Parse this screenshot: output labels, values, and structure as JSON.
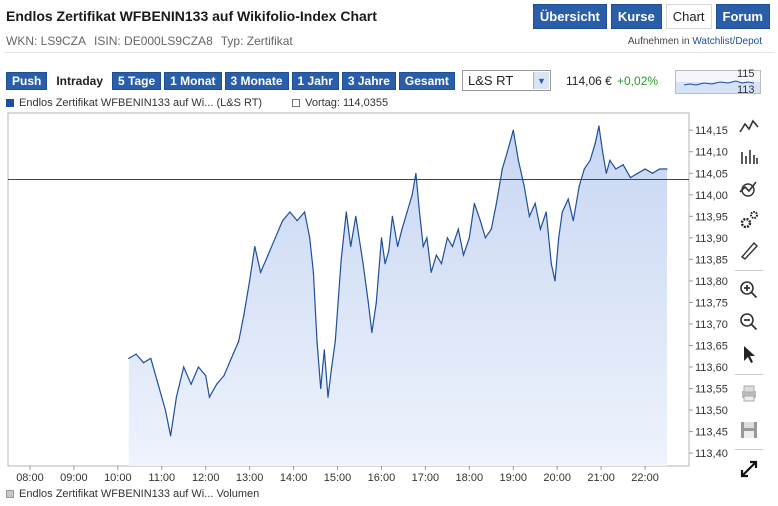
{
  "header": {
    "title": "Endlos Zertifikat WFBENIN133 auf Wikifolio-Index Chart",
    "nav_tabs": [
      {
        "label": "Übersicht",
        "active": false
      },
      {
        "label": "Kurse",
        "active": false
      },
      {
        "label": "Chart",
        "active": true
      },
      {
        "label": "Forum",
        "active": false
      }
    ]
  },
  "meta": {
    "wkn": "WKN: LS9CZA",
    "isin": "ISIN: DE000LS9CZA8",
    "typ": "Typ: Zertifikat",
    "add_prefix": "Aufnehmen in",
    "add_link": "Watchlist/Depot"
  },
  "controls": {
    "ranges": [
      {
        "label": "Push",
        "active": false
      },
      {
        "label": "Intraday",
        "active": true
      },
      {
        "label": "5 Tage",
        "active": false
      },
      {
        "label": "1 Monat",
        "active": false
      },
      {
        "label": "3 Monate",
        "active": false
      },
      {
        "label": "1 Jahr",
        "active": false
      },
      {
        "label": "3 Jahre",
        "active": false
      },
      {
        "label": "Gesamt",
        "active": false
      }
    ],
    "exchange": "L&S RT",
    "price": "114,06 €",
    "change": "+0,02%",
    "mini_high": "115",
    "mini_low": "113"
  },
  "legend": {
    "series": "Endlos Zertifikat WFBENIN133 auf Wi... (L&S RT)",
    "prev_close": "Vortag: 114,0355",
    "volume": "Endlos Zertifikat WFBENIN133 auf Wi... Volumen"
  },
  "colors": {
    "line": "#1f4f9b",
    "fill_top": "#c7d6f2",
    "fill_bottom": "#eef3fc",
    "prev_line": "#444444",
    "nav_bg": "#2a5ea8",
    "change_positive": "#2a9a2a"
  },
  "tools": [
    {
      "icon": "line-chart-icon"
    },
    {
      "icon": "ohlc-bars-icon"
    },
    {
      "icon": "indicator-icon"
    },
    {
      "icon": "settings-gears-icon"
    },
    {
      "icon": "drawing-pencil-icon"
    },
    {
      "icon": "zoom-in-icon"
    },
    {
      "icon": "zoom-out-icon"
    },
    {
      "icon": "cursor-icon"
    },
    {
      "icon": "print-icon"
    },
    {
      "icon": "save-icon"
    },
    {
      "icon": "fullscreen-icon"
    }
  ],
  "chart_data": {
    "type": "area",
    "title": "",
    "xlabel": "",
    "ylabel": "",
    "x_ticks": [
      "08:00",
      "09:00",
      "10:00",
      "11:00",
      "12:00",
      "13:00",
      "14:00",
      "15:00",
      "16:00",
      "17:00",
      "18:00",
      "19:00",
      "20:00",
      "21:00",
      "22:00"
    ],
    "y_ticks": [
      "113,40",
      "113,45",
      "113,50",
      "113,55",
      "113,60",
      "113,65",
      "113,70",
      "113,75",
      "113,80",
      "113,85",
      "113,90",
      "113,95",
      "114,00",
      "114,05",
      "114,10",
      "114,15"
    ],
    "xlim": [
      "07:30",
      "23:00"
    ],
    "ylim": [
      113.37,
      114.19
    ],
    "prev_close": 114.0355,
    "grid": false,
    "legend_position": "top-left",
    "series": [
      {
        "name": "Endlos Zertifikat WFBENIN133 auf Wi... (L&S RT)",
        "points": [
          [
            "10:15",
            113.62
          ],
          [
            "10:25",
            113.63
          ],
          [
            "10:35",
            113.61
          ],
          [
            "10:45",
            113.62
          ],
          [
            "10:55",
            113.56
          ],
          [
            "11:05",
            113.5
          ],
          [
            "11:12",
            113.44
          ],
          [
            "11:20",
            113.53
          ],
          [
            "11:30",
            113.6
          ],
          [
            "11:40",
            113.56
          ],
          [
            "11:50",
            113.6
          ],
          [
            "12:00",
            113.58
          ],
          [
            "12:05",
            113.53
          ],
          [
            "12:15",
            113.56
          ],
          [
            "12:25",
            113.58
          ],
          [
            "12:35",
            113.62
          ],
          [
            "12:45",
            113.66
          ],
          [
            "12:52",
            113.72
          ],
          [
            "13:00",
            113.8
          ],
          [
            "13:07",
            113.88
          ],
          [
            "13:15",
            113.82
          ],
          [
            "13:25",
            113.86
          ],
          [
            "13:35",
            113.9
          ],
          [
            "13:45",
            113.94
          ],
          [
            "13:55",
            113.96
          ],
          [
            "14:05",
            113.94
          ],
          [
            "14:15",
            113.96
          ],
          [
            "14:22",
            113.9
          ],
          [
            "14:27",
            113.82
          ],
          [
            "14:32",
            113.66
          ],
          [
            "14:37",
            113.55
          ],
          [
            "14:42",
            113.64
          ],
          [
            "14:47",
            113.53
          ],
          [
            "14:52",
            113.6
          ],
          [
            "14:57",
            113.66
          ],
          [
            "15:05",
            113.85
          ],
          [
            "15:12",
            113.96
          ],
          [
            "15:18",
            113.88
          ],
          [
            "15:25",
            113.95
          ],
          [
            "15:35",
            113.84
          ],
          [
            "15:42",
            113.75
          ],
          [
            "15:47",
            113.68
          ],
          [
            "15:53",
            113.75
          ],
          [
            "16:00",
            113.9
          ],
          [
            "16:05",
            113.84
          ],
          [
            "16:10",
            113.87
          ],
          [
            "16:15",
            113.95
          ],
          [
            "16:22",
            113.88
          ],
          [
            "16:28",
            113.92
          ],
          [
            "16:35",
            113.96
          ],
          [
            "16:42",
            114.0
          ],
          [
            "16:47",
            114.05
          ],
          [
            "16:52",
            113.96
          ],
          [
            "16:57",
            113.88
          ],
          [
            "17:02",
            113.9
          ],
          [
            "17:08",
            113.82
          ],
          [
            "17:15",
            113.86
          ],
          [
            "17:22",
            113.84
          ],
          [
            "17:30",
            113.9
          ],
          [
            "17:37",
            113.88
          ],
          [
            "17:45",
            113.92
          ],
          [
            "17:52",
            113.86
          ],
          [
            "18:00",
            113.9
          ],
          [
            "18:07",
            113.98
          ],
          [
            "18:15",
            113.94
          ],
          [
            "18:22",
            113.9
          ],
          [
            "18:30",
            113.92
          ],
          [
            "18:37",
            113.98
          ],
          [
            "18:45",
            114.06
          ],
          [
            "18:52",
            114.1
          ],
          [
            "19:00",
            114.15
          ],
          [
            "19:07",
            114.08
          ],
          [
            "19:15",
            114.02
          ],
          [
            "19:22",
            113.95
          ],
          [
            "19:30",
            113.98
          ],
          [
            "19:37",
            113.92
          ],
          [
            "19:45",
            113.96
          ],
          [
            "19:52",
            113.84
          ],
          [
            "19:57",
            113.8
          ],
          [
            "20:02",
            113.9
          ],
          [
            "20:07",
            113.96
          ],
          [
            "20:15",
            113.99
          ],
          [
            "20:22",
            113.94
          ],
          [
            "20:30",
            114.02
          ],
          [
            "20:37",
            114.06
          ],
          [
            "20:45",
            114.08
          ],
          [
            "20:52",
            114.12
          ],
          [
            "20:57",
            114.16
          ],
          [
            "21:02",
            114.1
          ],
          [
            "21:07",
            114.05
          ],
          [
            "21:12",
            114.08
          ],
          [
            "21:20",
            114.06
          ],
          [
            "21:30",
            114.07
          ],
          [
            "21:40",
            114.04
          ],
          [
            "21:50",
            114.05
          ],
          [
            "22:00",
            114.06
          ],
          [
            "22:10",
            114.05
          ],
          [
            "22:20",
            114.06
          ],
          [
            "22:30",
            114.06
          ]
        ]
      }
    ]
  }
}
